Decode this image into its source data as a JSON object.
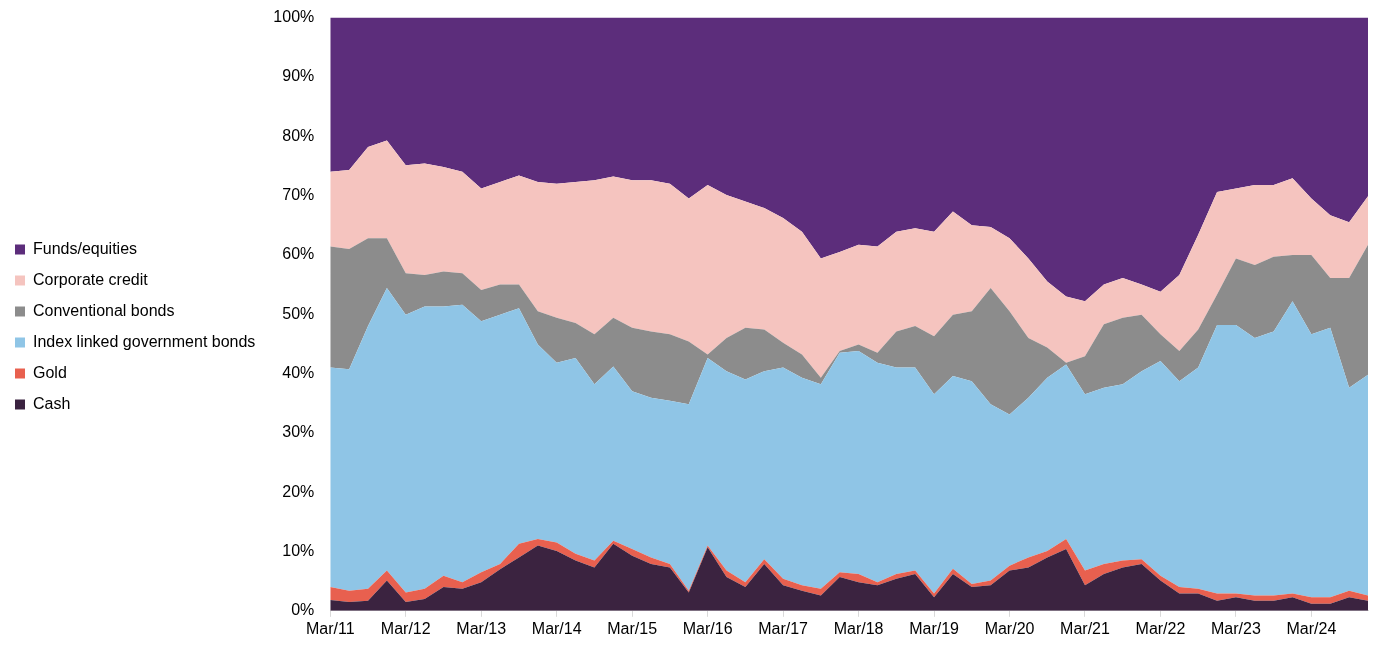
{
  "chart_data": {
    "type": "area",
    "stacked": true,
    "legend": "left",
    "categories": [
      "Mar/11",
      null,
      null,
      null,
      "Mar/12",
      null,
      null,
      null,
      "Mar/13",
      null,
      null,
      null,
      "Mar/14",
      null,
      null,
      null,
      "Mar/15",
      null,
      null,
      null,
      "Mar/16",
      null,
      null,
      null,
      "Mar/17",
      null,
      null,
      null,
      "Mar/18",
      null,
      null,
      null,
      "Mar/19",
      null,
      null,
      null,
      "Mar/20",
      null,
      null,
      null,
      "Mar/21",
      null,
      null,
      null,
      "Mar/22",
      null,
      null,
      null,
      "Mar/23",
      null,
      null,
      null,
      "Mar/24",
      null,
      null,
      null
    ],
    "ylim": [
      0,
      100
    ],
    "yticks": [
      {
        "value": 0,
        "label": "0%"
      },
      {
        "value": 10,
        "label": "10%"
      },
      {
        "value": 20,
        "label": "20%"
      },
      {
        "value": 30,
        "label": "30%"
      },
      {
        "value": 40,
        "label": "40%"
      },
      {
        "value": 50,
        "label": "50%"
      },
      {
        "value": 60,
        "label": "60%"
      },
      {
        "value": 70,
        "label": "70%"
      },
      {
        "value": 80,
        "label": "80%"
      },
      {
        "value": 90,
        "label": "90%"
      },
      {
        "value": 100,
        "label": "100%"
      }
    ],
    "series": [
      {
        "name": "Cash",
        "color": "#3b2340",
        "values": [
          1.8,
          1.5,
          1.7,
          5.1,
          1.5,
          2.0,
          4.0,
          3.7,
          4.8,
          7.0,
          9.0,
          11.0,
          10.1,
          8.5,
          7.3,
          11.3,
          9.3,
          7.9,
          7.3,
          3.1,
          10.7,
          5.7,
          4.0,
          7.9,
          4.3,
          3.4,
          2.6,
          5.7,
          4.8,
          4.3,
          5.4,
          6.2,
          2.3,
          6.2,
          4.0,
          4.3,
          6.8,
          7.3,
          9.0,
          10.4,
          4.3,
          6.2,
          7.3,
          7.9,
          5.1,
          2.9,
          2.9,
          1.7,
          2.3,
          1.7,
          1.7,
          2.3,
          1.2,
          1.2,
          2.3,
          1.7
        ]
      },
      {
        "name": "Gold",
        "color": "#e8604f",
        "values": [
          2.2,
          1.9,
          2.0,
          1.7,
          1.6,
          1.7,
          1.9,
          1.1,
          1.7,
          0.9,
          2.3,
          1.1,
          1.4,
          1.1,
          1.2,
          0.5,
          1.1,
          1.1,
          0.6,
          0.3,
          0.3,
          1.1,
          0.8,
          0.8,
          1.1,
          0.9,
          1.1,
          0.8,
          1.4,
          0.5,
          0.8,
          0.6,
          0.6,
          0.9,
          0.5,
          0.8,
          0.8,
          1.7,
          1.1,
          1.7,
          2.5,
          1.7,
          1.2,
          0.8,
          0.8,
          1.1,
          0.8,
          1.2,
          0.6,
          0.9,
          0.9,
          0.6,
          1.1,
          1.1,
          1.1,
          0.9
        ]
      },
      {
        "name": "Index linked government bonds",
        "color": "#8fc5e6",
        "values": [
          37.0,
          37.3,
          44.3,
          47.6,
          46.8,
          47.6,
          45.4,
          46.8,
          42.3,
          42.0,
          39.7,
          32.8,
          30.3,
          33.0,
          29.7,
          29.4,
          26.6,
          26.9,
          27.5,
          31.4,
          31.6,
          33.6,
          34.2,
          31.7,
          35.6,
          35.0,
          34.5,
          37.0,
          37.6,
          37.0,
          34.8,
          34.2,
          33.6,
          32.5,
          34.2,
          29.7,
          25.5,
          26.9,
          29.2,
          29.4,
          29.7,
          29.7,
          29.7,
          31.7,
          36.2,
          34.7,
          37.3,
          45.3,
          45.3,
          43.4,
          44.5,
          49.3,
          44.3,
          45.4,
          34.2,
          37.2
        ]
      },
      {
        "name": "Conventional bonds",
        "color": "#8c8c8c",
        "values": [
          20.4,
          20.3,
          14.8,
          8.4,
          7.0,
          5.3,
          5.9,
          5.3,
          5.3,
          5.1,
          4.0,
          5.6,
          7.6,
          5.9,
          8.4,
          8.2,
          10.7,
          11.2,
          11.2,
          10.6,
          0.6,
          5.6,
          8.7,
          7.0,
          4.2,
          3.9,
          1.1,
          0.3,
          1.1,
          1.7,
          6.1,
          7.0,
          9.8,
          10.3,
          11.8,
          19.6,
          17.4,
          10.1,
          5.1,
          0.3,
          6.4,
          10.7,
          11.2,
          9.5,
          4.5,
          5.1,
          6.4,
          5.1,
          11.2,
          12.3,
          12.6,
          7.8,
          13.4,
          8.4,
          18.5,
          21.9
        ]
      },
      {
        "name": "Corporate credit",
        "color": "#f5c4bf",
        "values": [
          12.6,
          13.3,
          15.4,
          16.5,
          18.2,
          18.8,
          17.6,
          17.1,
          17.1,
          17.3,
          18.4,
          21.8,
          22.6,
          23.8,
          26.0,
          23.8,
          24.9,
          25.5,
          25.4,
          24.1,
          28.6,
          24.1,
          21.3,
          20.5,
          21.0,
          20.7,
          20.1,
          16.7,
          16.8,
          17.9,
          16.8,
          16.5,
          17.6,
          17.4,
          14.5,
          10.3,
          12.3,
          13.4,
          11.1,
          11.2,
          9.3,
          6.7,
          6.7,
          5.1,
          7.2,
          12.8,
          16.0,
          17.3,
          11.8,
          13.5,
          12.1,
          12.9,
          9.5,
          10.6,
          9.4,
          8.2
        ]
      },
      {
        "name": "Funds/equities",
        "color": "#5c2d7b",
        "values": [
          26.0,
          25.7,
          21.8,
          20.7,
          24.9,
          24.6,
          25.2,
          26.0,
          28.8,
          27.7,
          26.6,
          27.7,
          28.0,
          27.7,
          27.4,
          26.8,
          27.4,
          27.4,
          28.0,
          30.5,
          28.2,
          29.9,
          31.0,
          32.1,
          33.8,
          36.1,
          40.6,
          39.5,
          38.3,
          38.6,
          36.1,
          35.5,
          36.1,
          32.7,
          35.0,
          35.3,
          37.2,
          40.6,
          44.5,
          47.0,
          47.8,
          45.0,
          43.9,
          45.0,
          46.2,
          43.4,
          36.6,
          29.4,
          28.8,
          28.2,
          28.2,
          27.1,
          30.5,
          33.3,
          34.5,
          30.1
        ]
      }
    ]
  }
}
